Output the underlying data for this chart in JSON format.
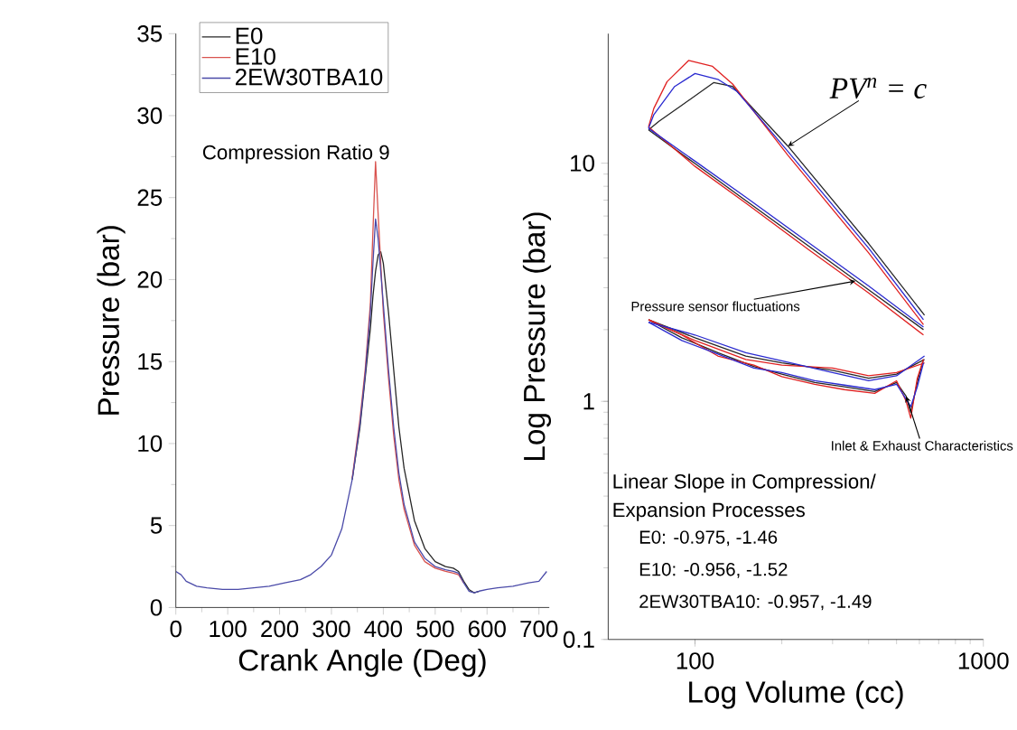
{
  "chart_data": [
    {
      "type": "line",
      "xlabel": "Crank Angle (Deg)",
      "ylabel": "Pressure (bar)",
      "xlim": [
        0,
        720
      ],
      "ylim": [
        0,
        35
      ],
      "xticks": [
        0,
        100,
        200,
        300,
        400,
        500,
        600,
        700
      ],
      "yticks": [
        0,
        5,
        10,
        15,
        20,
        25,
        30,
        35
      ],
      "legend": "top left",
      "x": [
        0,
        10,
        20,
        40,
        60,
        90,
        120,
        150,
        180,
        210,
        240,
        260,
        280,
        300,
        320,
        340,
        355,
        365,
        375,
        380,
        385,
        390,
        395,
        400,
        410,
        420,
        430,
        440,
        460,
        480,
        500,
        520,
        535,
        545,
        555,
        565,
        575,
        585,
        600,
        620,
        650,
        680,
        700,
        715
      ],
      "series": [
        {
          "name": "E0",
          "color": "#262626",
          "values": [
            null,
            null,
            null,
            null,
            null,
            null,
            null,
            null,
            null,
            null,
            null,
            null,
            null,
            null,
            null,
            7.8,
            11,
            14,
            17,
            19,
            20.5,
            21.5,
            21.7,
            21,
            18,
            14.5,
            11,
            8.5,
            5.3,
            3.6,
            2.8,
            2.5,
            2.4,
            2.2,
            1.6,
            1.1,
            0.9,
            1.0,
            null,
            null,
            null,
            null,
            null,
            null
          ]
        },
        {
          "name": "E10",
          "color": "#d9534f",
          "values": [
            null,
            null,
            null,
            null,
            null,
            null,
            null,
            null,
            null,
            null,
            null,
            null,
            null,
            null,
            null,
            7.9,
            11.5,
            14.5,
            18.5,
            23,
            27.2,
            24,
            21,
            18,
            14,
            10.5,
            7.8,
            6,
            3.8,
            2.8,
            2.4,
            2.2,
            2.1,
            2.0,
            1.5,
            null,
            null,
            null,
            null,
            null,
            null,
            null,
            null,
            null
          ]
        },
        {
          "name": "2EW30TBA10",
          "color": "#4a4aa8",
          "values": [
            2.2,
            2.0,
            1.6,
            1.3,
            1.2,
            1.1,
            1.1,
            1.2,
            1.3,
            1.5,
            1.7,
            2.0,
            2.5,
            3.2,
            4.8,
            7.8,
            11.2,
            14.2,
            18,
            21,
            23.7,
            22.5,
            20.5,
            18.5,
            14.5,
            11,
            8.2,
            6.3,
            4,
            3,
            2.5,
            2.3,
            2.2,
            2.1,
            1.5,
            1.0,
            0.9,
            1.0,
            1.1,
            1.2,
            1.3,
            1.5,
            1.6,
            2.2
          ]
        }
      ],
      "annotations": [
        "Compression Ratio 9"
      ]
    },
    {
      "type": "line",
      "xlabel": "Log Volume (cc)",
      "ylabel": "Log Pressure (bar)",
      "log": "xy",
      "xlim": [
        50,
        1000
      ],
      "ylim": [
        0.1,
        35
      ],
      "xticks": [
        100,
        1000
      ],
      "yticks": [
        0.1,
        1,
        10
      ],
      "series": [
        {
          "color": "#262626",
          "x": [
            69,
            90,
            120,
            160,
            200,
            260,
            330,
            420,
            500,
            540,
            560,
            590,
            620
          ],
          "values": [
            2.2,
            1.85,
            1.6,
            1.4,
            1.3,
            1.2,
            1.15,
            1.1,
            1.2,
            1.05,
            0.9,
            1.2,
            1.5
          ]
        },
        {
          "color": "#262626",
          "x": [
            620,
            400,
            250,
            150,
            100,
            69
          ],
          "values": [
            2.0,
            2.94,
            4.45,
            6.97,
            9.96,
            13.8
          ]
        },
        {
          "color": "#262626",
          "x": [
            69,
            75,
            90,
            116,
            135,
            210,
            400,
            625
          ],
          "values": [
            13.8,
            15,
            17.5,
            21.8,
            21,
            11.8,
            4.6,
            2.3
          ]
        },
        {
          "color": "#262626",
          "x": [
            625,
            500,
            400,
            300,
            200,
            150,
            100,
            69
          ],
          "values": [
            1.5,
            1.3,
            1.25,
            1.35,
            1.45,
            1.55,
            1.85,
            2.2
          ]
        },
        {
          "color": "#e02020",
          "x": [
            69,
            90,
            120,
            160,
            200,
            260,
            330,
            420,
            500,
            540,
            560,
            590,
            620
          ],
          "values": [
            2.2,
            1.9,
            1.55,
            1.42,
            1.27,
            1.18,
            1.12,
            1.08,
            1.22,
            1.0,
            0.85,
            1.25,
            1.5
          ]
        },
        {
          "color": "#e02020",
          "x": [
            620,
            400,
            250,
            150,
            100,
            69
          ],
          "values": [
            1.9,
            2.85,
            4.3,
            6.8,
            9.7,
            14.2
          ]
        },
        {
          "color": "#e02020",
          "x": [
            69,
            72,
            80,
            95,
            115,
            135,
            210,
            400,
            620
          ],
          "values": [
            14.2,
            17,
            22,
            27,
            25.5,
            21.5,
            10.8,
            4.2,
            2.1
          ]
        },
        {
          "color": "#e02020",
          "x": [
            625,
            500,
            400,
            300,
            200,
            150,
            100,
            69
          ],
          "values": [
            1.45,
            1.32,
            1.28,
            1.38,
            1.42,
            1.5,
            1.8,
            2.2
          ]
        },
        {
          "color": "#2a2ad0",
          "x": [
            69,
            90,
            120,
            160,
            200,
            260,
            330,
            420,
            500,
            540,
            560,
            590,
            620
          ],
          "values": [
            2.15,
            1.8,
            1.58,
            1.38,
            1.32,
            1.22,
            1.17,
            1.12,
            1.18,
            1.02,
            0.95,
            1.15,
            1.45
          ]
        },
        {
          "color": "#2a2ad0",
          "x": [
            620,
            400,
            250,
            150,
            100,
            69
          ],
          "values": [
            2.05,
            3.05,
            4.6,
            7.2,
            10.2,
            14
          ]
        },
        {
          "color": "#2a2ad0",
          "x": [
            69,
            72,
            85,
            100,
            120,
            140,
            210,
            400,
            620
          ],
          "values": [
            14,
            16,
            21,
            23.8,
            22.5,
            20,
            11.2,
            4.4,
            2.2
          ]
        },
        {
          "color": "#2a2ad0",
          "x": [
            625,
            500,
            400,
            300,
            200,
            150,
            100,
            69
          ],
          "values": [
            1.55,
            1.28,
            1.22,
            1.32,
            1.48,
            1.6,
            1.9,
            2.15
          ]
        }
      ],
      "annotations": [
        {
          "text": "PV$^{n}$ = c",
          "x": 210,
          "y": 11.8
        },
        {
          "text": "Pressure sensor fluctuations",
          "x": 360,
          "y": 3.2
        },
        {
          "text": "Inlet & Exhaust Characteristics",
          "x": 540,
          "y": 1.05
        },
        "Linear Slope in Compression/",
        "Expansion Processes",
        "E0: -0.975, -1.46",
        "E10: -0.956, -1.52",
        "2EW30TBA10: -0.957, -1.49"
      ]
    }
  ]
}
